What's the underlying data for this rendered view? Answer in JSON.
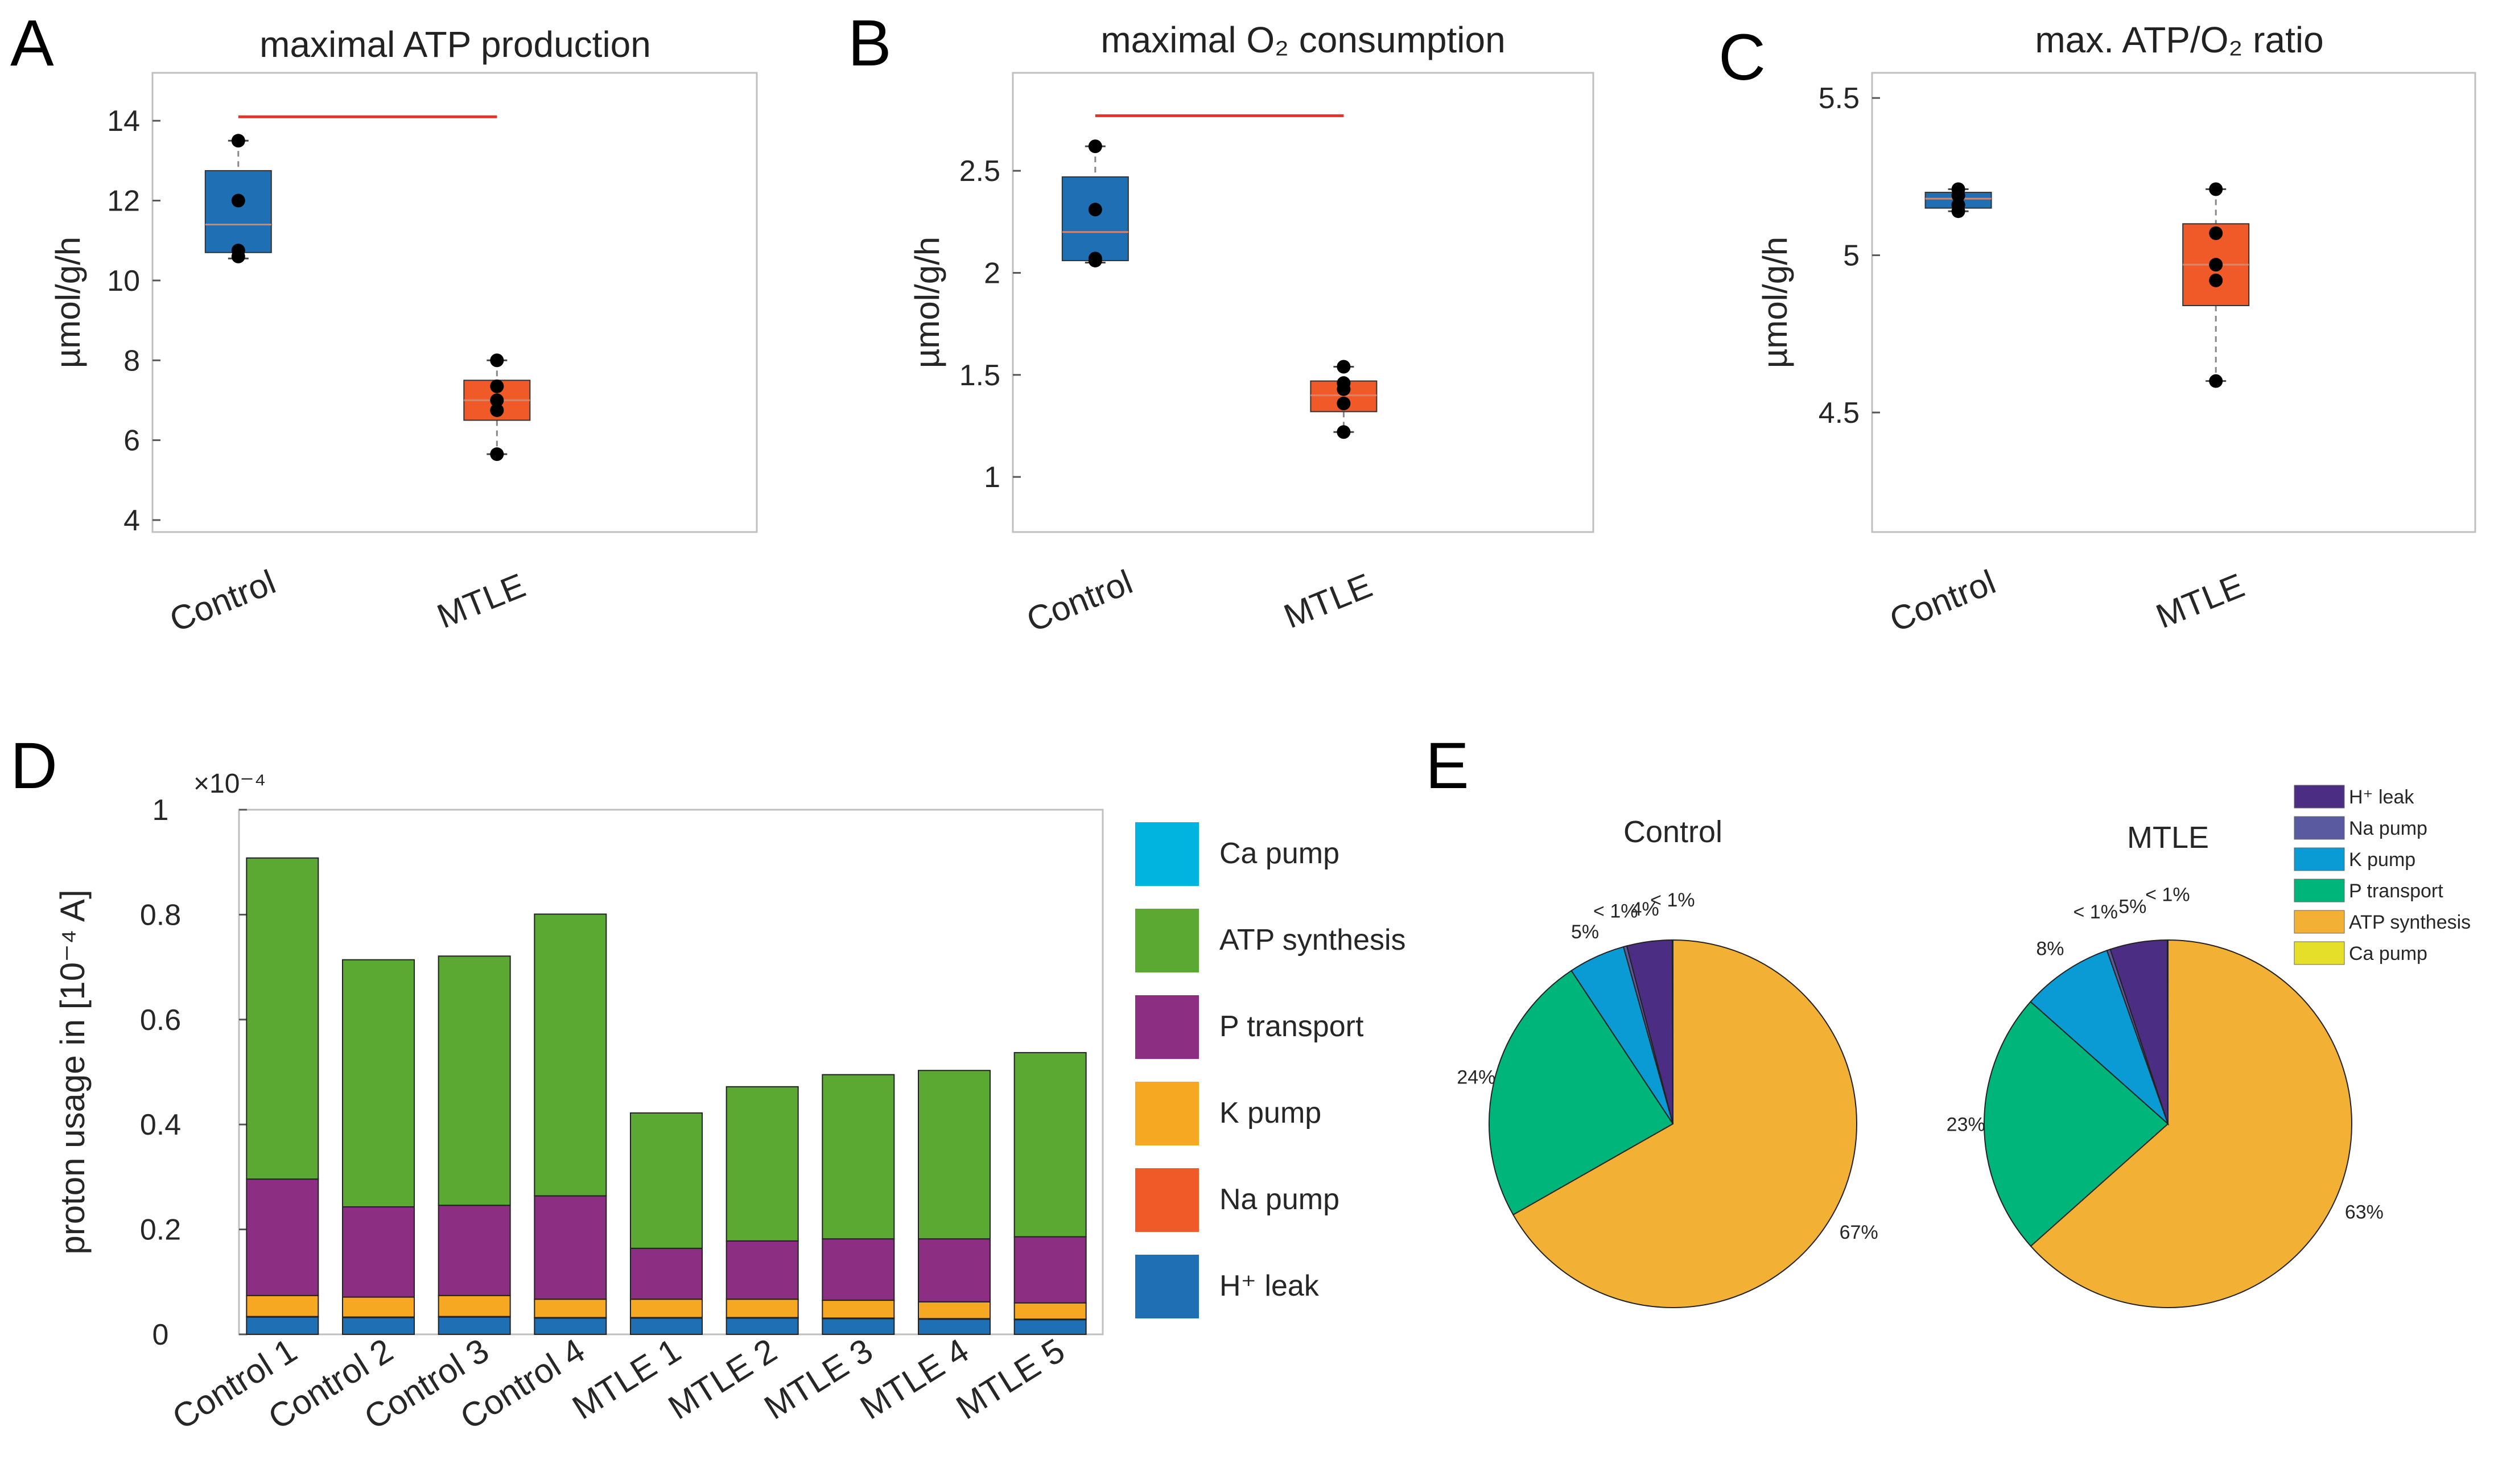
{
  "panels": {
    "a": "A",
    "b": "B",
    "c": "C",
    "d": "D",
    "e": "E"
  },
  "chart_data": [
    {
      "id": "A",
      "type": "box",
      "title": "maximal ATP production",
      "ylabel": "µmol/g/h",
      "ylim": [
        3.7,
        15.2
      ],
      "yticks": [
        4,
        6,
        8,
        10,
        12,
        14
      ],
      "categories": [
        "Control",
        "MTLE"
      ],
      "boxes": [
        {
          "name": "Control",
          "color": "#1f6fb4",
          "min": 10.55,
          "q1": 10.7,
          "median": 11.4,
          "q3": 12.75,
          "max": 13.5,
          "points": [
            13.5,
            12.0,
            10.75,
            10.6
          ]
        },
        {
          "name": "MTLE",
          "color": "#f05a28",
          "min": 5.65,
          "q1": 6.5,
          "median": 7.0,
          "q3": 7.5,
          "max": 8.0,
          "points": [
            8.0,
            7.35,
            7.0,
            6.75,
            5.65
          ]
        }
      ],
      "significance_y": 14.1
    },
    {
      "id": "B",
      "type": "box",
      "title": "maximal O₂ consumption",
      "ylabel": "µmol/g/h",
      "ylim": [
        0.73,
        2.98
      ],
      "yticks": [
        1,
        1.5,
        2,
        2.5
      ],
      "categories": [
        "Control",
        "MTLE"
      ],
      "boxes": [
        {
          "name": "Control",
          "color": "#1f6fb4",
          "min": 2.05,
          "q1": 2.06,
          "median": 2.2,
          "q3": 2.47,
          "max": 2.62,
          "points": [
            2.62,
            2.31,
            2.07,
            2.06
          ]
        },
        {
          "name": "MTLE",
          "color": "#f05a28",
          "min": 1.22,
          "q1": 1.32,
          "median": 1.4,
          "q3": 1.47,
          "max": 1.54,
          "points": [
            1.54,
            1.46,
            1.43,
            1.36,
            1.22
          ]
        }
      ],
      "significance_y": 2.77
    },
    {
      "id": "C",
      "type": "box",
      "title": "max. ATP/O₂ ratio",
      "ylabel": "µmol/g/h",
      "ylim": [
        4.12,
        5.58
      ],
      "yticks": [
        4.5,
        5,
        5.5
      ],
      "categories": [
        "Control",
        "MTLE"
      ],
      "boxes": [
        {
          "name": "Control",
          "color": "#1f6fb4",
          "min": 5.14,
          "q1": 5.15,
          "median": 5.18,
          "q3": 5.2,
          "max": 5.21,
          "points": [
            5.21,
            5.19,
            5.16,
            5.14
          ]
        },
        {
          "name": "MTLE",
          "color": "#f05a28",
          "min": 4.6,
          "q1": 4.84,
          "median": 4.97,
          "q3": 5.1,
          "max": 5.21,
          "points": [
            5.21,
            5.07,
            4.97,
            4.92,
            4.6
          ]
        }
      ]
    },
    {
      "id": "D",
      "type": "stacked-bar",
      "ylabel": "proton usage in  [10⁻⁴ A]",
      "scale_note": "×10⁻⁴",
      "ylim": [
        0,
        1
      ],
      "yticks": [
        0,
        0.2,
        0.4,
        0.6,
        0.8,
        1
      ],
      "ytick_labels": [
        "0",
        "0.2",
        "0.4",
        "0.6",
        "0.8",
        "1"
      ],
      "categories": [
        "Control 1",
        "Control 2",
        "Control 3",
        "Control 4",
        "MTLE   1",
        "MTLE   2",
        "MTLE   3",
        "MTLE   4",
        "MTLE   5"
      ],
      "series": [
        {
          "name": "H⁺ leak",
          "color": "#1f6fb4",
          "values": [
            0.033,
            0.032,
            0.033,
            0.031,
            0.031,
            0.031,
            0.03,
            0.029,
            0.028
          ]
        },
        {
          "name": "Na pump",
          "color": "#f05a28",
          "values": [
            0.001,
            0.001,
            0.001,
            0.001,
            0.001,
            0.001,
            0.001,
            0.001,
            0.001
          ]
        },
        {
          "name": "K pump",
          "color": "#f7a823",
          "values": [
            0.04,
            0.038,
            0.04,
            0.035,
            0.035,
            0.035,
            0.034,
            0.032,
            0.031
          ]
        },
        {
          "name": "P transport",
          "color": "#8c2f83",
          "values": [
            0.222,
            0.172,
            0.172,
            0.197,
            0.097,
            0.111,
            0.117,
            0.12,
            0.126
          ]
        },
        {
          "name": "ATP synthesis",
          "color": "#5ba832",
          "values": [
            0.612,
            0.471,
            0.475,
            0.537,
            0.258,
            0.294,
            0.313,
            0.321,
            0.351
          ]
        },
        {
          "name": "Ca pump",
          "color": "#00b4e0",
          "values": [
            0,
            0,
            0,
            0,
            0,
            0,
            0,
            0,
            0
          ]
        }
      ],
      "legend": [
        "Ca pump",
        "ATP synthesis",
        "P transport",
        "K pump",
        "Na pump",
        "H⁺ leak"
      ]
    },
    {
      "id": "E",
      "type": "pie",
      "pies": [
        {
          "title": "Control",
          "slices": [
            {
              "name": "ATP synthesis",
              "value": 67,
              "label": "67%",
              "color": "#f2b134"
            },
            {
              "name": "P transport",
              "value": 24,
              "label": "24%",
              "color": "#00b57a"
            },
            {
              "name": "K pump",
              "value": 5,
              "label": "5%",
              "color": "#0a9bd4"
            },
            {
              "name": "Na pump",
              "value": 0.3,
              "label": "< 1%",
              "color": "#5a5aa0"
            },
            {
              "name": "H⁺ leak",
              "value": 4,
              "label": "4%",
              "color": "#4b2d84"
            },
            {
              "name": "Ca pump",
              "value": 0.05,
              "label": "< 1%",
              "color": "#e5df2a"
            }
          ]
        },
        {
          "title": "MTLE",
          "slices": [
            {
              "name": "ATP synthesis",
              "value": 63,
              "label": "63%",
              "color": "#f2b134"
            },
            {
              "name": "P transport",
              "value": 23,
              "label": "23%",
              "color": "#00b57a"
            },
            {
              "name": "K pump",
              "value": 8,
              "label": "8%",
              "color": "#0a9bd4"
            },
            {
              "name": "Na pump",
              "value": 0.3,
              "label": "< 1%",
              "color": "#5a5aa0"
            },
            {
              "name": "H⁺ leak",
              "value": 5,
              "label": "5%",
              "color": "#4b2d84"
            },
            {
              "name": "Ca pump",
              "value": 0.05,
              "label": "< 1%",
              "color": "#e5df2a"
            }
          ]
        }
      ],
      "legend": [
        {
          "name": "H⁺ leak",
          "color": "#4b2d84"
        },
        {
          "name": "Na pump",
          "color": "#5a5aa0"
        },
        {
          "name": "K pump",
          "color": "#0a9bd4"
        },
        {
          "name": "P transport",
          "color": "#00b57a"
        },
        {
          "name": "ATP synthesis",
          "color": "#f2b134"
        },
        {
          "name": "Ca pump",
          "color": "#e5df2a"
        }
      ]
    }
  ]
}
